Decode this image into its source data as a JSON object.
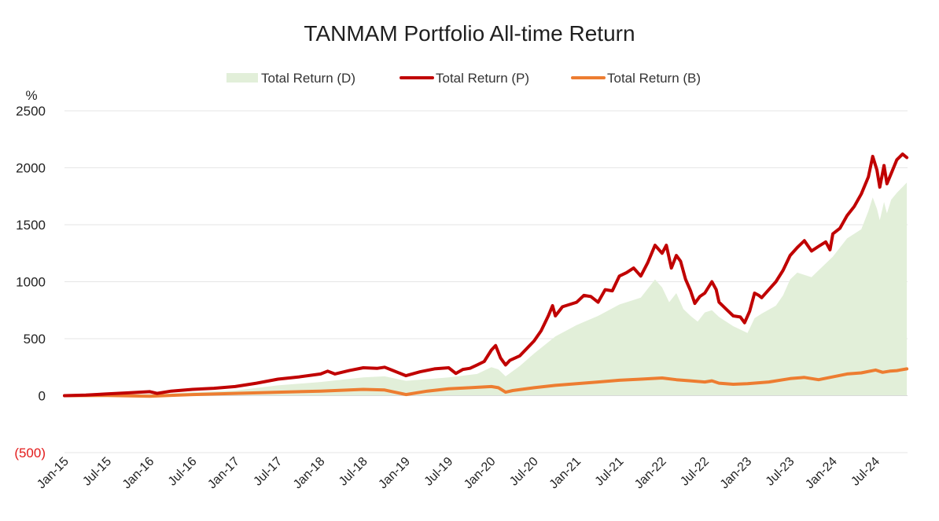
{
  "chart_data": {
    "type": "line",
    "title": "TANMAM Portfolio All-time Return",
    "ylabel": "%",
    "xlabel": "",
    "ylim": [
      -500,
      2500
    ],
    "y_ticks": [
      {
        "value": 2500,
        "label": "2500"
      },
      {
        "value": 2000,
        "label": "2000"
      },
      {
        "value": 1500,
        "label": "1500"
      },
      {
        "value": 1000,
        "label": "1000"
      },
      {
        "value": 500,
        "label": "500"
      },
      {
        "value": 0,
        "label": "0"
      },
      {
        "value": -500,
        "label": "(500)"
      }
    ],
    "x_ticks": [
      {
        "t": 0,
        "label": "Jan-15"
      },
      {
        "t": 6,
        "label": "Jul-15"
      },
      {
        "t": 12,
        "label": "Jan-16"
      },
      {
        "t": 18,
        "label": "Jul-16"
      },
      {
        "t": 24,
        "label": "Jan-17"
      },
      {
        "t": 30,
        "label": "Jul-17"
      },
      {
        "t": 36,
        "label": "Jan-18"
      },
      {
        "t": 42,
        "label": "Jul-18"
      },
      {
        "t": 48,
        "label": "Jan-19"
      },
      {
        "t": 54,
        "label": "Jul-19"
      },
      {
        "t": 60,
        "label": "Jan-20"
      },
      {
        "t": 66,
        "label": "Jul-20"
      },
      {
        "t": 72,
        "label": "Jan-21"
      },
      {
        "t": 78,
        "label": "Jul-21"
      },
      {
        "t": 84,
        "label": "Jan-22"
      },
      {
        "t": 90,
        "label": "Jul-22"
      },
      {
        "t": 96,
        "label": "Jan-23"
      },
      {
        "t": 102,
        "label": "Jul-23"
      },
      {
        "t": 108,
        "label": "Jan-24"
      },
      {
        "t": 114,
        "label": "Jul-24"
      }
    ],
    "x_range": [
      0,
      118.5
    ],
    "series": [
      {
        "name": "Total Return (D)",
        "style": "area",
        "color": "#e2efd9",
        "points": [
          [
            0,
            0
          ],
          [
            6,
            8
          ],
          [
            12,
            15
          ],
          [
            15,
            20
          ],
          [
            18,
            30
          ],
          [
            24,
            45
          ],
          [
            30,
            90
          ],
          [
            36,
            120
          ],
          [
            42,
            160
          ],
          [
            45,
            170
          ],
          [
            48,
            130
          ],
          [
            54,
            160
          ],
          [
            58,
            190
          ],
          [
            60,
            250
          ],
          [
            61,
            230
          ],
          [
            62,
            170
          ],
          [
            64,
            260
          ],
          [
            66,
            370
          ],
          [
            69,
            520
          ],
          [
            72,
            620
          ],
          [
            75,
            700
          ],
          [
            78,
            800
          ],
          [
            81,
            860
          ],
          [
            83,
            1020
          ],
          [
            84,
            950
          ],
          [
            85,
            820
          ],
          [
            86,
            900
          ],
          [
            87,
            760
          ],
          [
            88,
            700
          ],
          [
            89,
            650
          ],
          [
            90,
            730
          ],
          [
            91,
            750
          ],
          [
            92,
            690
          ],
          [
            94,
            610
          ],
          [
            95,
            580
          ],
          [
            96,
            550
          ],
          [
            97,
            680
          ],
          [
            98,
            720
          ],
          [
            100,
            790
          ],
          [
            101,
            880
          ],
          [
            102,
            1020
          ],
          [
            103,
            1080
          ],
          [
            105,
            1040
          ],
          [
            106,
            1100
          ],
          [
            108,
            1220
          ],
          [
            110,
            1380
          ],
          [
            112,
            1460
          ],
          [
            113,
            1620
          ],
          [
            113.6,
            1740
          ],
          [
            114.2,
            1640
          ],
          [
            114.6,
            1540
          ],
          [
            115.2,
            1700
          ],
          [
            115.6,
            1600
          ],
          [
            116.2,
            1720
          ],
          [
            117,
            1780
          ],
          [
            118.4,
            1870
          ]
        ]
      },
      {
        "name": "Total Return (P)",
        "style": "line",
        "color": "#c00000",
        "points": [
          [
            0,
            0
          ],
          [
            3,
            5
          ],
          [
            6,
            15
          ],
          [
            9,
            25
          ],
          [
            12,
            35
          ],
          [
            13,
            20
          ],
          [
            15,
            40
          ],
          [
            18,
            55
          ],
          [
            21,
            65
          ],
          [
            24,
            80
          ],
          [
            27,
            110
          ],
          [
            30,
            145
          ],
          [
            33,
            165
          ],
          [
            36,
            190
          ],
          [
            37,
            215
          ],
          [
            38,
            190
          ],
          [
            40,
            220
          ],
          [
            42,
            245
          ],
          [
            44,
            240
          ],
          [
            45,
            250
          ],
          [
            46,
            225
          ],
          [
            48,
            175
          ],
          [
            50,
            210
          ],
          [
            52,
            235
          ],
          [
            54,
            245
          ],
          [
            55,
            195
          ],
          [
            56,
            230
          ],
          [
            57,
            240
          ],
          [
            58,
            270
          ],
          [
            59,
            300
          ],
          [
            60,
            400
          ],
          [
            60.6,
            440
          ],
          [
            61.3,
            330
          ],
          [
            62,
            270
          ],
          [
            62.6,
            310
          ],
          [
            64,
            350
          ],
          [
            66,
            480
          ],
          [
            67,
            570
          ],
          [
            68,
            700
          ],
          [
            68.6,
            790
          ],
          [
            69,
            700
          ],
          [
            70,
            780
          ],
          [
            72,
            820
          ],
          [
            73,
            880
          ],
          [
            74,
            870
          ],
          [
            75,
            820
          ],
          [
            76,
            930
          ],
          [
            77,
            920
          ],
          [
            78,
            1050
          ],
          [
            79,
            1080
          ],
          [
            80,
            1120
          ],
          [
            81,
            1050
          ],
          [
            82,
            1170
          ],
          [
            83,
            1320
          ],
          [
            84,
            1250
          ],
          [
            84.6,
            1320
          ],
          [
            85.3,
            1120
          ],
          [
            86,
            1230
          ],
          [
            86.6,
            1180
          ],
          [
            87.3,
            1020
          ],
          [
            88,
            920
          ],
          [
            88.6,
            810
          ],
          [
            89.3,
            870
          ],
          [
            90,
            900
          ],
          [
            91,
            1000
          ],
          [
            91.6,
            930
          ],
          [
            92,
            820
          ],
          [
            93,
            760
          ],
          [
            94,
            700
          ],
          [
            95,
            690
          ],
          [
            95.6,
            640
          ],
          [
            96.3,
            740
          ],
          [
            97,
            900
          ],
          [
            97.6,
            880
          ],
          [
            98,
            860
          ],
          [
            99,
            930
          ],
          [
            100,
            1000
          ],
          [
            101,
            1100
          ],
          [
            102,
            1230
          ],
          [
            103,
            1300
          ],
          [
            104,
            1360
          ],
          [
            105,
            1270
          ],
          [
            106,
            1310
          ],
          [
            107,
            1350
          ],
          [
            107.6,
            1280
          ],
          [
            108,
            1420
          ],
          [
            109,
            1470
          ],
          [
            110,
            1580
          ],
          [
            111,
            1660
          ],
          [
            112,
            1770
          ],
          [
            113,
            1920
          ],
          [
            113.6,
            2100
          ],
          [
            114.2,
            1980
          ],
          [
            114.6,
            1830
          ],
          [
            115.2,
            2020
          ],
          [
            115.6,
            1860
          ],
          [
            116.2,
            1950
          ],
          [
            117,
            2070
          ],
          [
            117.8,
            2120
          ],
          [
            118.4,
            2090
          ]
        ]
      },
      {
        "name": "Total Return (B)",
        "style": "line",
        "color": "#ed7d31",
        "points": [
          [
            0,
            0
          ],
          [
            6,
            2
          ],
          [
            12,
            -5
          ],
          [
            15,
            3
          ],
          [
            18,
            10
          ],
          [
            24,
            20
          ],
          [
            30,
            30
          ],
          [
            36,
            40
          ],
          [
            42,
            55
          ],
          [
            45,
            50
          ],
          [
            48,
            10
          ],
          [
            51,
            40
          ],
          [
            54,
            60
          ],
          [
            57,
            70
          ],
          [
            60,
            80
          ],
          [
            61,
            70
          ],
          [
            62,
            30
          ],
          [
            63,
            45
          ],
          [
            66,
            70
          ],
          [
            69,
            90
          ],
          [
            72,
            105
          ],
          [
            75,
            120
          ],
          [
            78,
            135
          ],
          [
            81,
            145
          ],
          [
            84,
            155
          ],
          [
            86,
            140
          ],
          [
            88,
            130
          ],
          [
            90,
            120
          ],
          [
            91,
            130
          ],
          [
            92,
            110
          ],
          [
            94,
            100
          ],
          [
            96,
            105
          ],
          [
            99,
            120
          ],
          [
            102,
            150
          ],
          [
            104,
            160
          ],
          [
            106,
            140
          ],
          [
            108,
            165
          ],
          [
            110,
            190
          ],
          [
            112,
            200
          ],
          [
            114,
            225
          ],
          [
            115,
            205
          ],
          [
            116,
            215
          ],
          [
            117,
            220
          ],
          [
            118.4,
            235
          ]
        ]
      }
    ],
    "legend": "top-center"
  }
}
